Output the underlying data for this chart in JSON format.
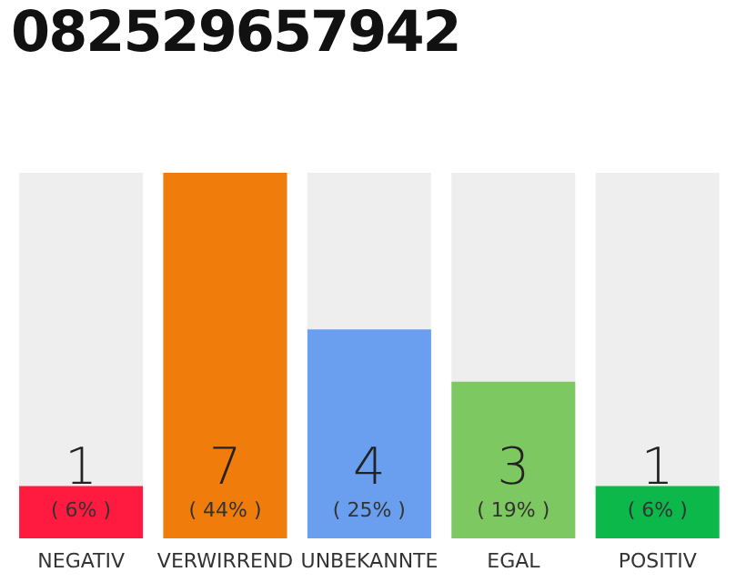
{
  "chart_data": {
    "type": "bar",
    "title": "082529657942",
    "categories": [
      "NEGATIV",
      "VERWIRREND",
      "UNBEKANNTE",
      "EGAL",
      "POSITIV"
    ],
    "values": [
      1,
      7,
      4,
      3,
      1
    ],
    "colors": [
      "#ff1a40",
      "#f07c0c",
      "#6a9ff0",
      "#7dc860",
      "#0cb84a"
    ],
    "data_labels": true,
    "annotations": [
      "( 6% )",
      "( 44% )",
      "( 25% )",
      "( 19% )",
      "( 6% )"
    ],
    "grid": false,
    "legend": false
  }
}
